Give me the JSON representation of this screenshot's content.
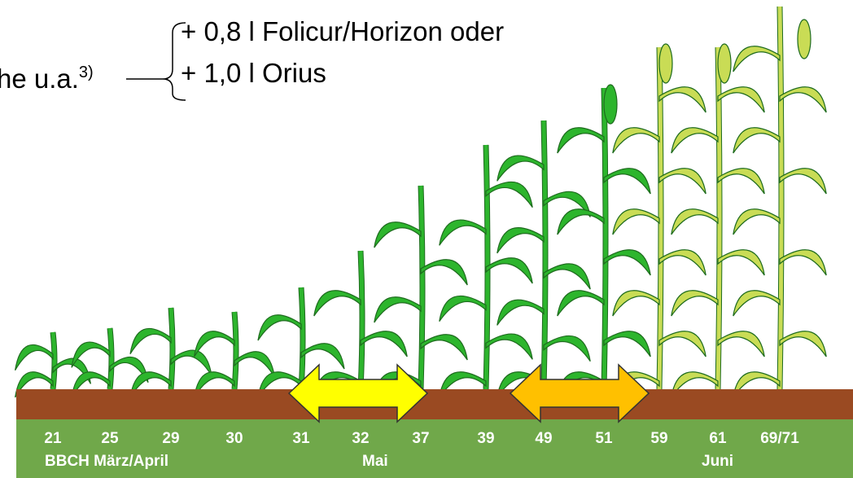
{
  "note": {
    "text": "he u.a.",
    "superscript": "3)"
  },
  "options": [
    "+ 0,8 l Folicur/Horizon oder",
    "+ 1,0 l Orius"
  ],
  "stages": [
    "21",
    "25",
    "29",
    "30",
    "31",
    "32",
    "37",
    "39",
    "49",
    "51",
    "59",
    "61",
    "69/71"
  ],
  "periods": [
    "BBCH März/April",
    "Mai",
    "Juni"
  ]
}
